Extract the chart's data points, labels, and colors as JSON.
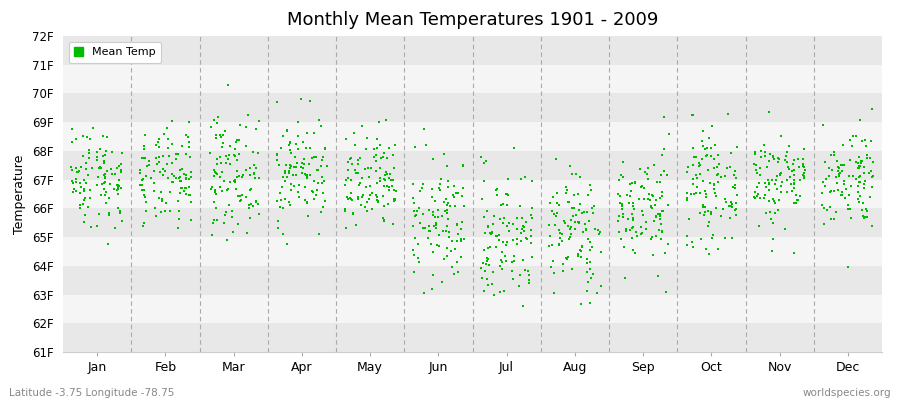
{
  "title": "Monthly Mean Temperatures 1901 - 2009",
  "ylabel": "Temperature",
  "footer_left": "Latitude -3.75 Longitude -78.75",
  "footer_right": "worldspecies.org",
  "legend_label": "Mean Temp",
  "dot_color": "#00bb00",
  "bg_color": "#ffffff",
  "band_gray": "#e8e8e8",
  "band_white": "#f5f5f5",
  "yticks": [
    61,
    62,
    63,
    64,
    65,
    66,
    67,
    68,
    69,
    70,
    71,
    72
  ],
  "ylim": [
    61,
    72
  ],
  "months": [
    "Jan",
    "Feb",
    "Mar",
    "Apr",
    "May",
    "Jun",
    "Jul",
    "Aug",
    "Sep",
    "Oct",
    "Nov",
    "Dec"
  ],
  "month_means": [
    67.1,
    67.0,
    67.2,
    67.3,
    66.8,
    65.5,
    65.0,
    65.2,
    66.0,
    66.7,
    67.0,
    67.1
  ],
  "month_stds": [
    0.9,
    0.85,
    1.0,
    0.95,
    0.9,
    1.1,
    1.2,
    1.1,
    1.0,
    0.95,
    0.85,
    0.9
  ],
  "n_years": 109,
  "seed": 42
}
